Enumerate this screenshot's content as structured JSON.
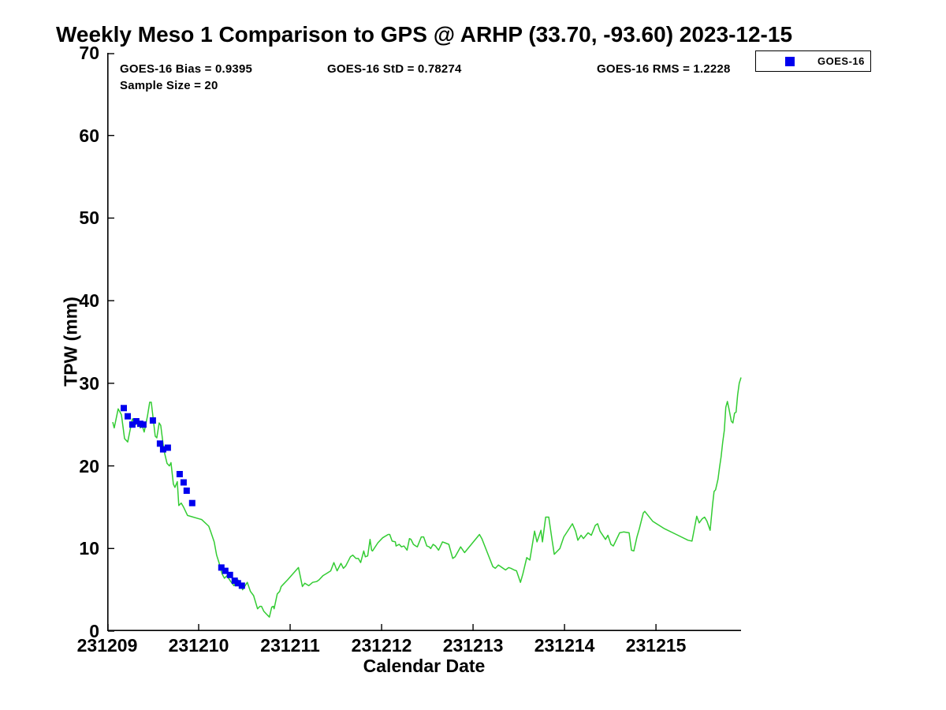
{
  "header": {
    "title": "Weekly Meso 1 Comparison to GPS @ ARHP (33.70, -93.60) 2023-12-15",
    "stats": {
      "bias": "GOES-16 Bias = 0.9395",
      "std": "GOES-16 StD = 0.78274",
      "rms": "GOES-16 RMS = 1.2228",
      "sample_size": "Sample Size = 20"
    }
  },
  "legend": {
    "entries": [
      {
        "label": "GOES-16",
        "marker_color": "#0000EE",
        "marker_shape": "square"
      }
    ]
  },
  "chart_data": {
    "type": "line",
    "title": "Weekly Meso 1 Comparison to GPS @ ARHP (33.70, -93.60) 2023-12-15",
    "xlabel": "Calendar Date",
    "ylabel": "TPW (mm)",
    "xlim": [
      0,
      6.93
    ],
    "ylim": [
      0,
      70
    ],
    "grid": false,
    "legend_position": "top-right-outside",
    "x_axis_note": "x expressed as days after first tick; tick labels are YYMMDD dates",
    "x_ticks": {
      "positions": [
        0,
        1,
        2,
        3,
        4,
        5,
        6
      ],
      "labels": [
        "231209",
        "231210",
        "231211",
        "231212",
        "231213",
        "231214",
        "231215"
      ]
    },
    "y_ticks": [
      0,
      10,
      20,
      30,
      40,
      50,
      60,
      70
    ],
    "colors": {
      "gps_line": "#33CC33",
      "goes_marker": "#0000EE",
      "axis": "#000000"
    },
    "series": [
      {
        "name": "GPS",
        "type": "line",
        "color": "#33CC33",
        "points": [
          [
            0.06,
            25.3
          ],
          [
            0.077,
            24.6
          ],
          [
            0.12,
            26.9
          ],
          [
            0.155,
            26.2
          ],
          [
            0.19,
            23.3
          ],
          [
            0.224,
            22.9
          ],
          [
            0.275,
            25.7
          ],
          [
            0.31,
            25.0
          ],
          [
            0.335,
            25.6
          ],
          [
            0.361,
            24.6
          ],
          [
            0.378,
            25.0
          ],
          [
            0.404,
            24.1
          ],
          [
            0.44,
            26.0
          ],
          [
            0.465,
            27.7
          ],
          [
            0.482,
            27.7
          ],
          [
            0.525,
            23.6
          ],
          [
            0.542,
            23.4
          ],
          [
            0.568,
            25.2
          ],
          [
            0.585,
            24.9
          ],
          [
            0.62,
            21.9
          ],
          [
            0.654,
            20.3
          ],
          [
            0.68,
            20.0
          ],
          [
            0.697,
            20.4
          ],
          [
            0.723,
            17.8
          ],
          [
            0.74,
            17.4
          ],
          [
            0.766,
            18.1
          ],
          [
            0.783,
            15.2
          ],
          [
            0.809,
            15.5
          ],
          [
            0.835,
            15.0
          ],
          [
            0.878,
            14.0
          ],
          [
            1.033,
            13.5
          ],
          [
            1.11,
            12.7
          ],
          [
            1.136,
            11.9
          ],
          [
            1.17,
            10.8
          ],
          [
            1.196,
            9.2
          ],
          [
            1.222,
            8.3
          ],
          [
            1.239,
            7.6
          ],
          [
            1.257,
            6.9
          ],
          [
            1.282,
            6.4
          ],
          [
            1.308,
            6.7
          ],
          [
            1.351,
            6.0
          ],
          [
            1.386,
            5.5
          ],
          [
            1.429,
            6.2
          ],
          [
            1.472,
            5.4
          ],
          [
            1.48,
            5.0
          ],
          [
            1.532,
            5.9
          ],
          [
            1.566,
            4.8
          ],
          [
            1.601,
            4.3
          ],
          [
            1.644,
            2.7
          ],
          [
            1.67,
            3.0
          ],
          [
            1.687,
            3.0
          ],
          [
            1.713,
            2.4
          ],
          [
            1.738,
            2.1
          ],
          [
            1.773,
            1.7
          ],
          [
            1.799,
            2.9
          ],
          [
            1.816,
            3.0
          ],
          [
            1.825,
            2.7
          ],
          [
            1.859,
            4.5
          ],
          [
            1.885,
            4.8
          ],
          [
            1.902,
            5.4
          ],
          [
            1.928,
            5.7
          ],
          [
            1.971,
            6.2
          ],
          [
            2.091,
            7.7
          ],
          [
            2.134,
            5.4
          ],
          [
            2.16,
            5.8
          ],
          [
            2.203,
            5.5
          ],
          [
            2.246,
            5.9
          ],
          [
            2.289,
            6.0
          ],
          [
            2.315,
            6.2
          ],
          [
            2.358,
            6.7
          ],
          [
            2.401,
            7.0
          ],
          [
            2.444,
            7.3
          ],
          [
            2.478,
            8.3
          ],
          [
            2.513,
            7.3
          ],
          [
            2.556,
            8.2
          ],
          [
            2.582,
            7.6
          ],
          [
            2.608,
            7.9
          ],
          [
            2.659,
            9.0
          ],
          [
            2.685,
            9.2
          ],
          [
            2.719,
            8.8
          ],
          [
            2.745,
            8.8
          ],
          [
            2.771,
            8.3
          ],
          [
            2.805,
            9.7
          ],
          [
            2.822,
            9.0
          ],
          [
            2.848,
            9.1
          ],
          [
            2.874,
            11.1
          ],
          [
            2.891,
            9.8
          ],
          [
            2.9,
            9.7
          ],
          [
            2.96,
            10.7
          ],
          [
            3.012,
            11.3
          ],
          [
            3.072,
            11.7
          ],
          [
            3.089,
            11.7
          ],
          [
            3.115,
            10.9
          ],
          [
            3.15,
            10.8
          ],
          [
            3.158,
            10.3
          ],
          [
            3.193,
            10.5
          ],
          [
            3.218,
            10.2
          ],
          [
            3.244,
            10.3
          ],
          [
            3.279,
            9.8
          ],
          [
            3.305,
            11.2
          ],
          [
            3.322,
            11.1
          ],
          [
            3.348,
            10.5
          ],
          [
            3.374,
            10.3
          ],
          [
            3.391,
            10.2
          ],
          [
            3.434,
            11.4
          ],
          [
            3.46,
            11.4
          ],
          [
            3.494,
            10.3
          ],
          [
            3.52,
            10.2
          ],
          [
            3.537,
            10.0
          ],
          [
            3.563,
            10.5
          ],
          [
            3.589,
            10.3
          ],
          [
            3.623,
            9.8
          ],
          [
            3.666,
            10.8
          ],
          [
            3.692,
            10.7
          ],
          [
            3.735,
            10.5
          ],
          [
            3.778,
            8.8
          ],
          [
            3.804,
            9.0
          ],
          [
            3.864,
            10.2
          ],
          [
            3.907,
            9.5
          ],
          [
            4.07,
            11.7
          ],
          [
            4.096,
            11.2
          ],
          [
            4.156,
            9.5
          ],
          [
            4.217,
            7.8
          ],
          [
            4.243,
            7.6
          ],
          [
            4.277,
            8.0
          ],
          [
            4.303,
            7.8
          ],
          [
            4.355,
            7.4
          ],
          [
            4.389,
            7.7
          ],
          [
            4.415,
            7.6
          ],
          [
            4.449,
            7.4
          ],
          [
            4.475,
            7.3
          ],
          [
            4.518,
            5.9
          ],
          [
            4.544,
            6.9
          ],
          [
            4.587,
            8.9
          ],
          [
            4.621,
            8.6
          ],
          [
            4.673,
            12.1
          ],
          [
            4.699,
            10.8
          ],
          [
            4.742,
            12.2
          ],
          [
            4.759,
            10.8
          ],
          [
            4.794,
            13.8
          ],
          [
            4.828,
            13.8
          ],
          [
            4.863,
            11.1
          ],
          [
            4.888,
            9.3
          ],
          [
            4.949,
            10.0
          ],
          [
            4.992,
            11.4
          ],
          [
            5.086,
            13.0
          ],
          [
            5.121,
            12.1
          ],
          [
            5.146,
            11.0
          ],
          [
            5.181,
            11.6
          ],
          [
            5.207,
            11.2
          ],
          [
            5.258,
            11.9
          ],
          [
            5.293,
            11.6
          ],
          [
            5.336,
            12.8
          ],
          [
            5.362,
            13.0
          ],
          [
            5.388,
            12.1
          ],
          [
            5.448,
            11.1
          ],
          [
            5.474,
            11.6
          ],
          [
            5.508,
            10.5
          ],
          [
            5.534,
            10.3
          ],
          [
            5.551,
            10.7
          ],
          [
            5.603,
            11.9
          ],
          [
            5.646,
            12.0
          ],
          [
            5.706,
            11.9
          ],
          [
            5.732,
            9.8
          ],
          [
            5.758,
            9.7
          ],
          [
            5.792,
            11.4
          ],
          [
            5.818,
            12.4
          ],
          [
            5.861,
            14.3
          ],
          [
            5.878,
            14.5
          ],
          [
            5.964,
            13.3
          ],
          [
            6.093,
            12.4
          ],
          [
            6.222,
            11.7
          ],
          [
            6.351,
            11.0
          ],
          [
            6.394,
            10.9
          ],
          [
            6.446,
            13.9
          ],
          [
            6.472,
            13.1
          ],
          [
            6.506,
            13.6
          ],
          [
            6.532,
            13.8
          ],
          [
            6.558,
            13.3
          ],
          [
            6.592,
            12.2
          ],
          [
            6.618,
            15.2
          ],
          [
            6.635,
            16.9
          ],
          [
            6.652,
            17.1
          ],
          [
            6.678,
            18.4
          ],
          [
            6.695,
            19.8
          ],
          [
            6.712,
            21.1
          ],
          [
            6.73,
            22.9
          ],
          [
            6.747,
            24.3
          ],
          [
            6.764,
            27.1
          ],
          [
            6.781,
            27.8
          ],
          [
            6.798,
            26.9
          ],
          [
            6.824,
            25.4
          ],
          [
            6.841,
            25.2
          ],
          [
            6.859,
            26.4
          ],
          [
            6.876,
            26.5
          ],
          [
            6.893,
            28.6
          ],
          [
            6.91,
            30.0
          ],
          [
            6.93,
            30.7
          ]
        ]
      },
      {
        "name": "GOES-16",
        "type": "scatter",
        "color": "#0000EE",
        "marker": "square",
        "marker_size": 8,
        "points": [
          [
            0.181,
            27.0
          ],
          [
            0.224,
            26.0
          ],
          [
            0.275,
            25.0
          ],
          [
            0.318,
            25.4
          ],
          [
            0.361,
            25.1
          ],
          [
            0.396,
            25.0
          ],
          [
            0.499,
            25.5
          ],
          [
            0.577,
            22.7
          ],
          [
            0.611,
            22.0
          ],
          [
            0.663,
            22.2
          ],
          [
            0.792,
            19.0
          ],
          [
            0.835,
            18.0
          ],
          [
            0.869,
            17.0
          ],
          [
            0.929,
            15.5
          ],
          [
            1.248,
            7.7
          ],
          [
            1.291,
            7.3
          ],
          [
            1.342,
            6.8
          ],
          [
            1.394,
            6.1
          ],
          [
            1.429,
            5.8
          ],
          [
            1.472,
            5.5
          ]
        ]
      }
    ]
  }
}
